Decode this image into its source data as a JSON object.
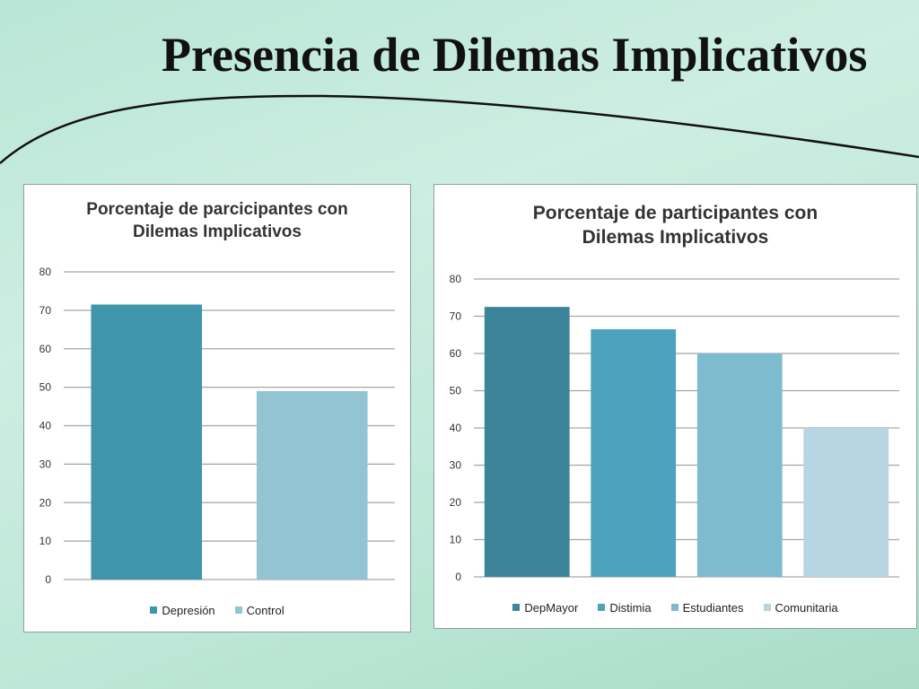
{
  "slide": {
    "title": "Presencia de Dilemas Implicativos"
  },
  "colors": {
    "grid": "#a6a6a6",
    "depresion": "#3f95ab",
    "control": "#93c4d4",
    "depmayor": "#3b8499",
    "distimia": "#4ba4bb",
    "estudiantes": "#7ebbcf",
    "comunitaria": "#b7d5e2"
  },
  "chart_data": [
    {
      "type": "bar",
      "title": "Porcentaje de parcicipantes con Dilemas Implicativos",
      "title_lines": [
        "Porcentaje de parcicipantes con",
        "Dilemas Implicativos"
      ],
      "categories": [
        "Depresión",
        "Control"
      ],
      "values": [
        71.5,
        49
      ],
      "colors": [
        "#3f95ab",
        "#93c4d4"
      ],
      "ylim": [
        0,
        80
      ],
      "yticks": [
        "0",
        "10",
        "20",
        "30",
        "40",
        "50",
        "60",
        "70",
        "80"
      ],
      "grid": true,
      "legend": "bottom",
      "legend_entries": [
        "Depresión",
        "Control"
      ]
    },
    {
      "type": "bar",
      "title": "Porcentaje de participantes con Dilemas Implicativos",
      "title_lines": [
        "Porcentaje de participantes con",
        "Dilemas Implicativos"
      ],
      "categories": [
        "DepMayor",
        "Distimia",
        "Estudiantes",
        "Comunitaria"
      ],
      "values": [
        72.5,
        66.5,
        60,
        40
      ],
      "colors": [
        "#3b8499",
        "#4ba4bb",
        "#7ebbcf",
        "#b7d5e2"
      ],
      "ylim": [
        0,
        80
      ],
      "yticks": [
        "0",
        "10",
        "20",
        "30",
        "40",
        "50",
        "60",
        "70",
        "80"
      ],
      "grid": true,
      "legend": "bottom",
      "legend_entries": [
        "DepMayor",
        "Distimia",
        "Estudiantes",
        "Comunitaria"
      ]
    }
  ]
}
